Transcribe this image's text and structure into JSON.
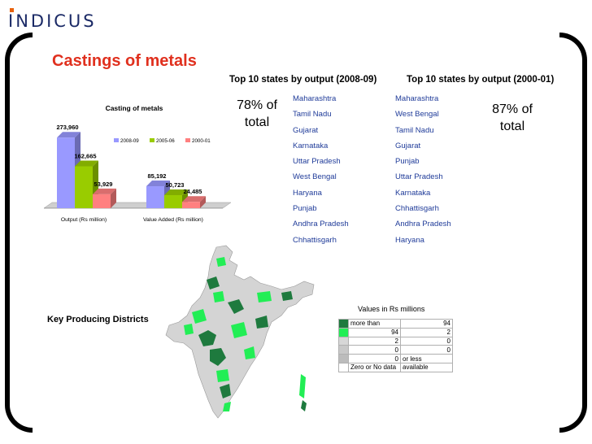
{
  "brand": {
    "logo_text": "INDICUS"
  },
  "title": "Castings of metals",
  "chart_data": {
    "type": "bar",
    "title": "Casting of metals",
    "categories": [
      "Output (Rs million)",
      "Value Added (Rs million)"
    ],
    "series": [
      {
        "name": "2008-09",
        "values": [
          273960,
          85192
        ],
        "labels": [
          "273,960",
          "85,192"
        ],
        "color": "#9999ff"
      },
      {
        "name": "2005-06",
        "values": [
          162665,
          50723
        ],
        "labels": [
          "162,665",
          "50,723"
        ],
        "color": "#99cc00"
      },
      {
        "name": "2000-01",
        "values": [
          53929,
          24485
        ],
        "labels": [
          "53,929",
          "24,485"
        ],
        "color": "#ff8080"
      }
    ],
    "ylim": [
      0,
      300000
    ],
    "legend": "top-right",
    "grid": false
  },
  "lists": {
    "y2008": {
      "heading": "Top 10 states by output (2008-09)",
      "share": "78% of total",
      "states": [
        "Maharashtra",
        "Tamil Nadu",
        "Gujarat",
        "Karnataka",
        "Uttar Pradesh",
        "West Bengal",
        "Haryana",
        "Punjab",
        "Andhra Pradesh",
        "Chhattisgarh"
      ]
    },
    "y2000": {
      "heading": "Top 10 states by output (2000-01)",
      "share": "87% of total",
      "states": [
        "Maharashtra",
        "West Bengal",
        "Tamil Nadu",
        "Gujarat",
        "Punjab",
        "Uttar Pradesh",
        "Karnataka",
        "Chhattisgarh",
        "Andhra Pradesh",
        "Haryana"
      ]
    }
  },
  "map": {
    "label": "Key Producing Districts",
    "legend_title": "Values in Rs millions",
    "legend_rows": [
      {
        "color": "#1e7a3e",
        "low": "more than",
        "high": "94"
      },
      {
        "color": "#22ee55",
        "low": "94",
        "high": "2"
      },
      {
        "color": "#d7d7d7",
        "low": "2",
        "high": "0"
      },
      {
        "color": "#c8c8c8",
        "low": "0",
        "high": "0"
      },
      {
        "color": "#bcbcbc",
        "low": "0",
        "high": "or less"
      },
      {
        "color": "#ffffff",
        "low": "Zero or No data",
        "high": "available"
      }
    ]
  }
}
